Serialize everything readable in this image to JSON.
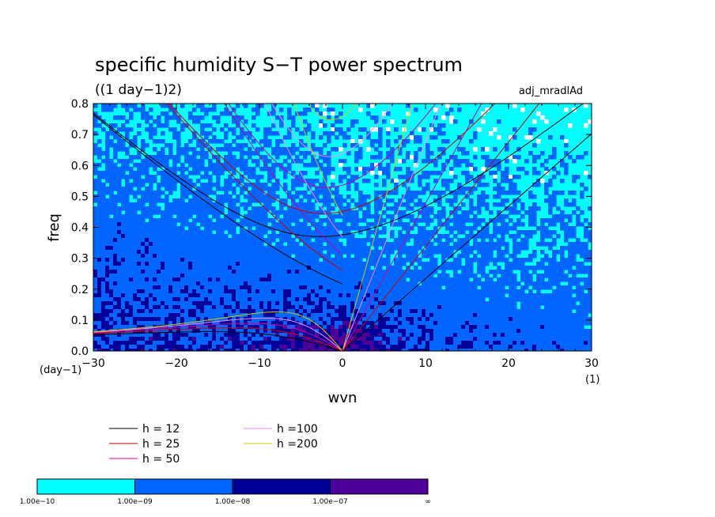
{
  "chart_data": {
    "type": "heatmap",
    "title": "specific humidity S−T power spectrum",
    "units_label": "((1 day−1)2)",
    "experiment_label": "adj_mradlAd",
    "xlabel": "wvn",
    "ylabel": "freq",
    "x_unit_label": "(1)",
    "y_unit_label": "(day−1)",
    "xlim": [
      -30,
      30
    ],
    "ylim": [
      0,
      0.8
    ],
    "x_ticks": [
      -30,
      -20,
      -10,
      0,
      10,
      20,
      30
    ],
    "x_tick_labels": [
      "−30",
      "−20",
      "−10",
      "0",
      "10",
      "20",
      "30"
    ],
    "y_ticks": [
      0.0,
      0.1,
      0.2,
      0.3,
      0.4,
      0.5,
      0.6,
      0.7,
      0.8
    ],
    "y_tick_labels": [
      "0.0",
      "0.1",
      "0.2",
      "0.3",
      "0.4",
      "0.5",
      "0.6",
      "0.7",
      "0.8"
    ],
    "contour_levels": [
      "1.00e−10",
      "1.00e−09",
      "1.00e−08",
      "1.00e−07",
      "∞"
    ],
    "contour_colors": [
      "#00ffff",
      "#0066ff",
      "#000099",
      "#4d0099"
    ],
    "dispersion_curves": [
      {
        "label": "h = 12",
        "h": 12,
        "color": "#000000"
      },
      {
        "label": "h = 25",
        "h": 25,
        "color": "#cc0000"
      },
      {
        "label": "h = 50",
        "h": 50,
        "color": "#cc0099"
      },
      {
        "label": "h =100",
        "h": 100,
        "color": "#ff88ff"
      },
      {
        "label": "h =200",
        "h": 200,
        "color": "#cccc00"
      }
    ]
  }
}
